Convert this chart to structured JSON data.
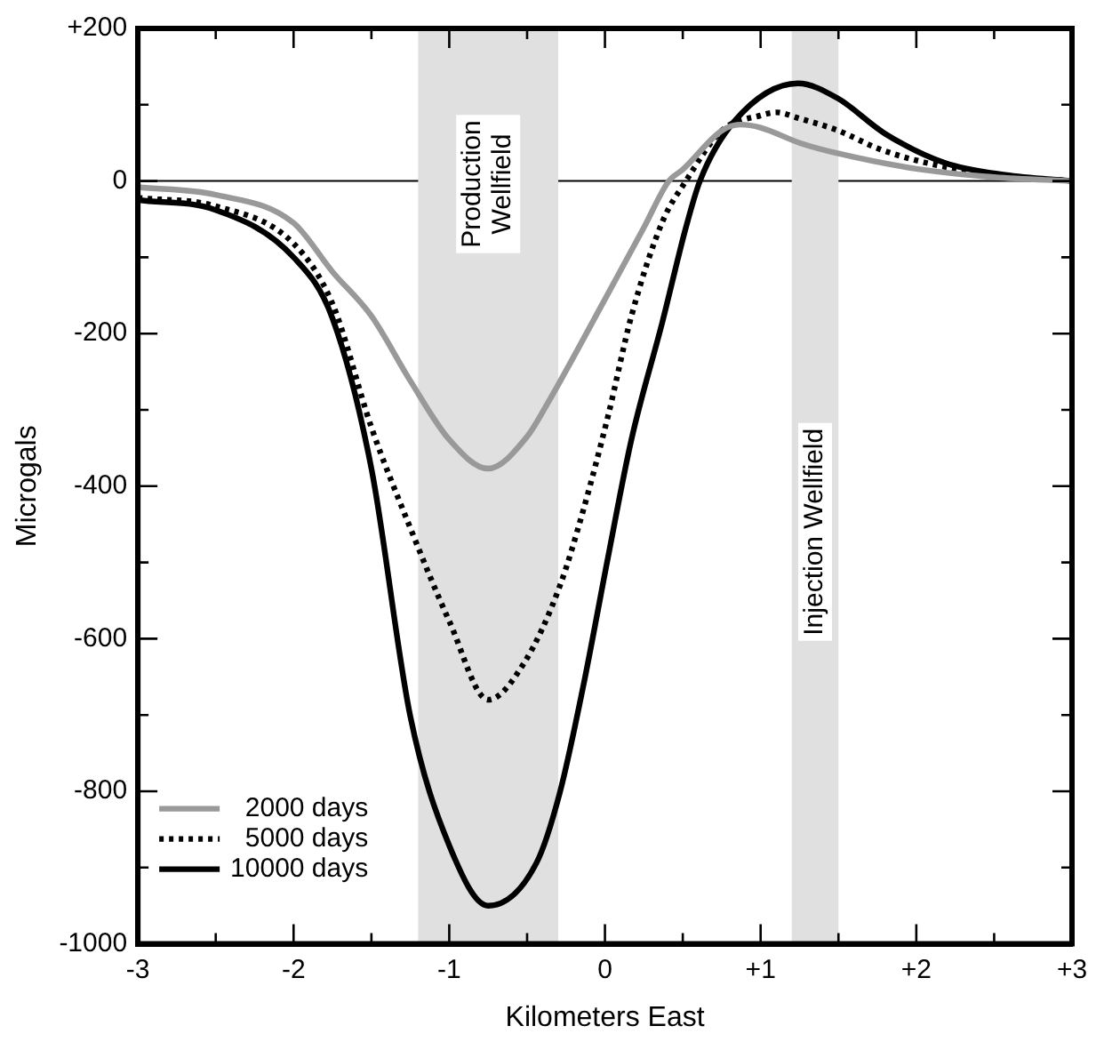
{
  "chart_data": {
    "type": "line",
    "xlabel": "Kilometers East",
    "ylabel": "Microgals",
    "xlim": [
      -3,
      3
    ],
    "ylim": [
      -1000,
      200
    ],
    "xticks": [
      {
        "value": -3,
        "label": "-3"
      },
      {
        "value": -2.5,
        "label": null
      },
      {
        "value": -2,
        "label": "-2"
      },
      {
        "value": -1.5,
        "label": null
      },
      {
        "value": -1,
        "label": "-1"
      },
      {
        "value": -0.5,
        "label": null
      },
      {
        "value": 0,
        "label": "0"
      },
      {
        "value": 0.5,
        "label": null
      },
      {
        "value": 1,
        "label": "+1"
      },
      {
        "value": 1.5,
        "label": null
      },
      {
        "value": 2,
        "label": "+2"
      },
      {
        "value": 2.5,
        "label": null
      },
      {
        "value": 3,
        "label": "+3"
      }
    ],
    "yticks": [
      {
        "value": -1000,
        "label": "-1000"
      },
      {
        "value": -900,
        "label": null
      },
      {
        "value": -800,
        "label": "-800"
      },
      {
        "value": -700,
        "label": null
      },
      {
        "value": -600,
        "label": "-600"
      },
      {
        "value": -500,
        "label": null
      },
      {
        "value": -400,
        "label": "-400"
      },
      {
        "value": -300,
        "label": null
      },
      {
        "value": -200,
        "label": "-200"
      },
      {
        "value": -100,
        "label": null
      },
      {
        "value": 0,
        "label": "0"
      },
      {
        "value": 100,
        "label": null
      },
      {
        "value": 200,
        "label": "+200"
      }
    ],
    "grid": false,
    "legend": "bottom left",
    "marker": "none",
    "ref_lines": [
      {
        "axis": "y",
        "value": 0,
        "color": "#000000"
      }
    ],
    "bands": [
      {
        "axis": "x",
        "from": -1.2,
        "to": -0.3,
        "label": "Production\nWellfield",
        "color": "#e0e0e0"
      },
      {
        "axis": "x",
        "from": 1.2,
        "to": 1.5,
        "label": "Injection Wellfield",
        "color": "#e0e0e0"
      }
    ],
    "series": [
      {
        "name": "2000 days",
        "color": "#999999",
        "line_style": "solid",
        "x": [
          -3,
          -2.5,
          -2,
          -1.75,
          -1.5,
          -1.25,
          -1,
          -0.75,
          -0.5,
          -0.37,
          0,
          0.25,
          0.41,
          0.5,
          0.75,
          0.87,
          1,
          1.25,
          1.5,
          2,
          2.5,
          3
        ],
        "values": [
          -8,
          -18,
          -55,
          -119,
          -177,
          -262,
          -339,
          -377,
          -335,
          -292,
          -155,
          -61,
          0,
          15,
          66,
          74,
          70,
          50,
          36,
          16,
          5,
          0
        ]
      },
      {
        "name": "5000 days",
        "color": "#000000",
        "line_style": "dotted",
        "x": [
          -3,
          -2.5,
          -2,
          -1.75,
          -1.5,
          -1.25,
          -1,
          -0.75,
          -0.52,
          -0.29,
          -0.14,
          0.02,
          0.17,
          0.37,
          0.52,
          0.75,
          1,
          1.1,
          1.25,
          1.5,
          1.75,
          2,
          2.5,
          3
        ],
        "values": [
          -22,
          -33,
          -82,
          -161,
          -323,
          -455,
          -577,
          -680,
          -632,
          -531,
          -432,
          -308,
          -177,
          -53,
          0,
          66,
          86,
          90,
          82,
          66,
          43,
          27,
          8,
          0
        ]
      },
      {
        "name": "10000 days",
        "color": "#000000",
        "line_style": "solid",
        "x": [
          -3,
          -2.5,
          -2,
          -1.75,
          -1.5,
          -1.25,
          -1,
          -0.75,
          -0.44,
          -0.29,
          -0.14,
          0.02,
          0.17,
          0.37,
          0.52,
          0.61,
          0.83,
          1.24,
          1.49,
          1.8,
          2.18,
          2.57,
          3
        ],
        "values": [
          -25,
          -38,
          -100,
          -180,
          -377,
          -702,
          -871,
          -950,
          -894,
          -802,
          -663,
          -493,
          -339,
          -184,
          -61,
          0,
          78,
          128,
          109,
          62,
          24,
          8,
          0
        ]
      }
    ]
  }
}
